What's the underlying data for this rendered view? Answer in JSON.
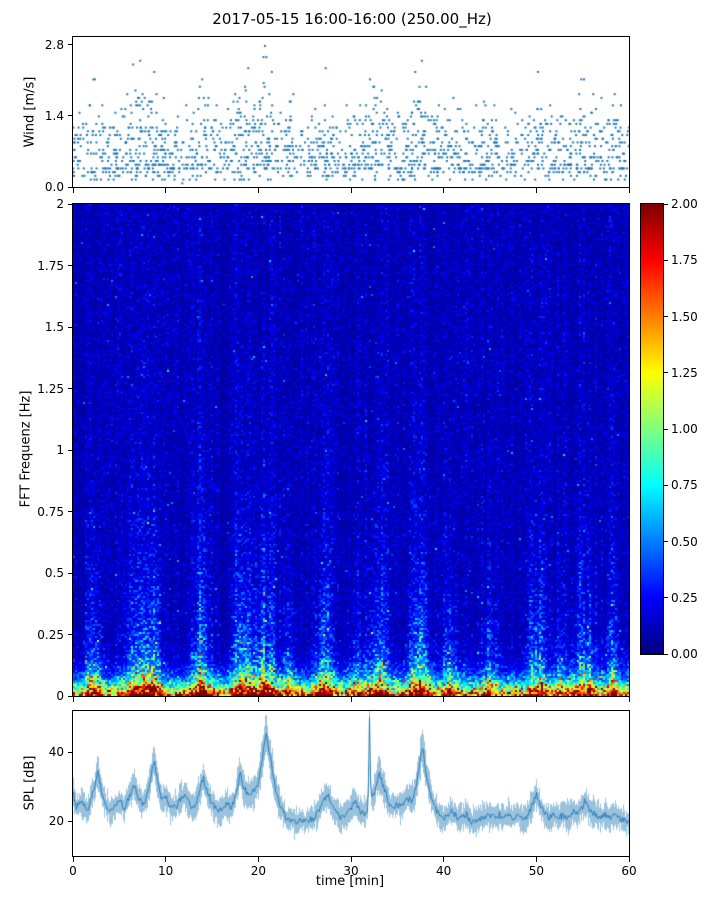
{
  "figure": {
    "title": "2017-05-15 16:00-16:00 (250.00_Hz)",
    "xlabel": "time [min]",
    "accent_color": "#1f77b4"
  },
  "xticks": {
    "labels": [
      "0",
      "10",
      "20",
      "30",
      "40",
      "50",
      "60"
    ],
    "values": [
      0,
      10,
      20,
      30,
      40,
      50,
      60
    ],
    "xlim": [
      0,
      60
    ]
  },
  "colorbar": {
    "colormap": "jet",
    "vmin": 0,
    "vmax": 2,
    "tick_labels": [
      "2.00",
      "1.75",
      "1.50",
      "1.25",
      "1.00",
      "0.75",
      "0.50",
      "0.25",
      "0.00"
    ],
    "tick_values": [
      2,
      1.75,
      1.5,
      1.25,
      1,
      0.75,
      0.5,
      0.25,
      0
    ]
  },
  "chart_data": [
    {
      "type": "scatter",
      "name": "wind",
      "ylabel": "Wind [m/s]",
      "ylim": [
        0,
        2.95
      ],
      "xlim": [
        0,
        60
      ],
      "ytick_labels": [
        "0.0",
        "1.4",
        "2.8"
      ],
      "ytick_values": [
        0,
        1.4,
        2.8
      ],
      "marker_color": "#1f77b4",
      "quantize_step": 0.073,
      "point_count": 2400,
      "typical_band": [
        0.2,
        1.4
      ],
      "max_gust": 2.8,
      "description": "dense quantized wind-speed scatter; steady band 0.2-1.4 m/s with gust clusters to 2.8 m/s around burst events"
    },
    {
      "type": "heatmap",
      "name": "spectrogram",
      "ylabel": "FFT Frequenz [Hz]",
      "ylim": [
        0,
        2
      ],
      "xlim": [
        0,
        60
      ],
      "ytick_labels": [
        "0",
        "0.25",
        "0.5",
        "0.75",
        "1",
        "1.25",
        "1.5",
        "1.75",
        "2"
      ],
      "ytick_values": [
        0,
        0.25,
        0.5,
        0.75,
        1,
        1.25,
        1.5,
        1.75,
        2
      ],
      "colormap": "jet",
      "value_range": [
        0,
        2
      ],
      "background_level": 0.16,
      "low_freq_peak": 2.2,
      "low_freq_width_hz": 0.05,
      "bursts": [
        {
          "t": 2.2,
          "w": 0.7,
          "s": 0.75
        },
        {
          "t": 6.8,
          "w": 1.0,
          "s": 0.8
        },
        {
          "t": 8.6,
          "w": 0.8,
          "s": 0.95
        },
        {
          "t": 13.9,
          "w": 0.9,
          "s": 1.0
        },
        {
          "t": 18.2,
          "w": 0.9,
          "s": 0.95
        },
        {
          "t": 20.6,
          "w": 1.1,
          "s": 1.1
        },
        {
          "t": 23.3,
          "w": 0.6,
          "s": 0.5
        },
        {
          "t": 27.2,
          "w": 0.9,
          "s": 0.75
        },
        {
          "t": 30.4,
          "w": 0.6,
          "s": 0.5
        },
        {
          "t": 32.8,
          "w": 1.0,
          "s": 0.95
        },
        {
          "t": 37.4,
          "w": 1.0,
          "s": 0.95
        },
        {
          "t": 40.6,
          "w": 0.7,
          "s": 0.65
        },
        {
          "t": 44.9,
          "w": 0.7,
          "s": 0.45
        },
        {
          "t": 50.0,
          "w": 0.9,
          "s": 0.7
        },
        {
          "t": 52.5,
          "w": 0.6,
          "s": 0.4
        },
        {
          "t": 55.2,
          "w": 1.2,
          "s": 0.7
        },
        {
          "t": 58.2,
          "w": 0.7,
          "s": 0.5
        }
      ],
      "description": "FFT spectrogram 0-2 Hz, jet colormap; strong red band below ~0.05 Hz, cyan/green vertical burst streaks up to ~0.8 Hz, dark blue background"
    },
    {
      "type": "line",
      "name": "spl",
      "ylabel": "SPL [dB]",
      "ylim": [
        10,
        52
      ],
      "xlim": [
        0,
        60
      ],
      "ytick_labels": [
        "20",
        "40"
      ],
      "ytick_values": [
        20,
        40
      ],
      "line_color": "#1f77b4",
      "keypoints": [
        [
          0,
          28
        ],
        [
          0.3,
          24
        ],
        [
          0.8,
          26
        ],
        [
          1.5,
          23
        ],
        [
          2.3,
          30
        ],
        [
          2.6,
          35
        ],
        [
          3,
          29
        ],
        [
          3.5,
          25
        ],
        [
          4,
          23
        ],
        [
          4.5,
          24
        ],
        [
          5,
          26
        ],
        [
          5.5,
          24
        ],
        [
          6,
          27
        ],
        [
          6.5,
          31
        ],
        [
          7,
          27
        ],
        [
          7.5,
          25
        ],
        [
          8,
          28
        ],
        [
          8.7,
          38
        ],
        [
          9.2,
          30
        ],
        [
          9.6,
          26
        ],
        [
          10,
          27
        ],
        [
          10.5,
          24
        ],
        [
          11,
          24
        ],
        [
          11.5,
          26
        ],
        [
          12,
          28
        ],
        [
          12.5,
          25
        ],
        [
          13,
          24
        ],
        [
          13.5,
          27
        ],
        [
          14,
          33
        ],
        [
          14.4,
          29
        ],
        [
          15,
          25
        ],
        [
          15.5,
          23
        ],
        [
          16,
          23
        ],
        [
          16.5,
          25
        ],
        [
          17,
          24
        ],
        [
          17.5,
          27
        ],
        [
          18,
          34
        ],
        [
          18.4,
          30
        ],
        [
          19,
          27
        ],
        [
          19.5,
          29
        ],
        [
          20,
          31
        ],
        [
          20.8,
          46
        ],
        [
          21.3,
          38
        ],
        [
          21.8,
          30
        ],
        [
          22.3,
          25
        ],
        [
          23,
          21
        ],
        [
          24,
          20
        ],
        [
          25,
          20
        ],
        [
          26,
          21
        ],
        [
          26.5,
          23
        ],
        [
          27,
          26
        ],
        [
          27.5,
          28
        ],
        [
          28,
          24
        ],
        [
          28.5,
          22
        ],
        [
          29,
          21
        ],
        [
          29.5,
          22
        ],
        [
          30,
          24
        ],
        [
          30.5,
          26
        ],
        [
          31,
          23
        ],
        [
          31.5,
          22
        ],
        [
          31.85,
          24
        ],
        [
          32,
          50
        ],
        [
          32.15,
          26
        ],
        [
          32.5,
          28
        ],
        [
          33,
          34
        ],
        [
          33.4,
          31
        ],
        [
          34,
          26
        ],
        [
          34.5,
          24
        ],
        [
          35,
          25
        ],
        [
          35.5,
          24
        ],
        [
          36,
          27
        ],
        [
          36.5,
          26
        ],
        [
          37,
          29
        ],
        [
          37.7,
          42
        ],
        [
          38.2,
          33
        ],
        [
          38.6,
          28
        ],
        [
          39,
          24
        ],
        [
          39.5,
          22
        ],
        [
          40,
          21
        ],
        [
          40.5,
          22
        ],
        [
          41,
          23
        ],
        [
          41.5,
          21
        ],
        [
          42,
          21
        ],
        [
          42.5,
          22
        ],
        [
          43,
          20
        ],
        [
          44,
          21
        ],
        [
          45,
          22
        ],
        [
          45.5,
          21
        ],
        [
          46,
          22
        ],
        [
          46.5,
          21
        ],
        [
          47,
          22
        ],
        [
          47.5,
          21
        ],
        [
          48,
          22
        ],
        [
          48.5,
          21
        ],
        [
          49,
          21
        ],
        [
          49.5,
          24
        ],
        [
          50,
          28
        ],
        [
          50.4,
          25
        ],
        [
          51,
          22
        ],
        [
          51.5,
          21
        ],
        [
          52,
          22
        ],
        [
          52.5,
          21
        ],
        [
          53,
          22
        ],
        [
          53.5,
          21
        ],
        [
          54,
          23
        ],
        [
          54.5,
          22
        ],
        [
          55,
          24
        ],
        [
          55.3,
          26
        ],
        [
          55.8,
          23
        ],
        [
          56.5,
          22
        ],
        [
          57,
          21
        ],
        [
          57.5,
          22
        ],
        [
          58,
          21
        ],
        [
          58.5,
          22
        ],
        [
          59,
          21
        ],
        [
          59.5,
          20
        ],
        [
          60,
          20
        ]
      ],
      "description": "noisy sound-pressure-level trace ~20 dB baseline with peaks near 2.6, 8.7, 14, 18, 20.8 (46 dB), a narrow spike at 32 (50 dB), 33, 37.7 and 50 min"
    }
  ]
}
